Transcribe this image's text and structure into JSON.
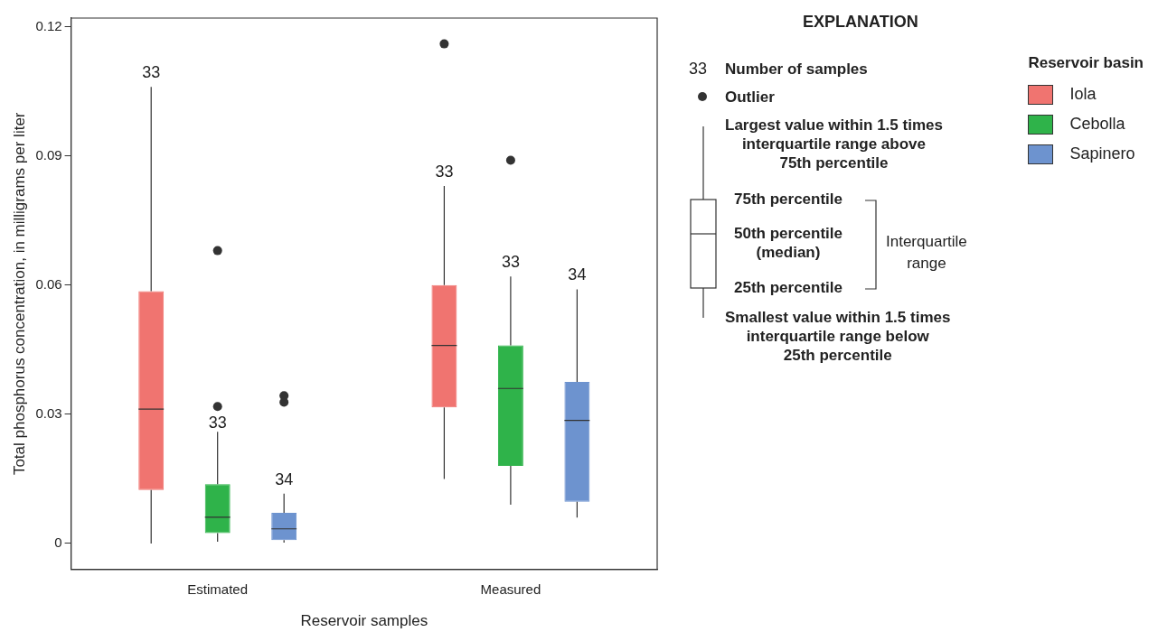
{
  "chart_data": {
    "type": "box",
    "xlabel": "Reservoir samples",
    "ylabel": "Total phosphorus concentration, in milligrams per liter",
    "categories": [
      "Estimated",
      "Measured"
    ],
    "ylim": [
      -0.006,
      0.122
    ],
    "yticks": [
      0,
      0.03,
      0.06,
      0.09,
      0.12
    ],
    "grid": false,
    "legend": "top right",
    "legend_title": "Reservoir basin",
    "series": [
      {
        "name": "Iola",
        "color": "#f07470",
        "boxes": [
          {
            "low": 0,
            "q1": 0.0124,
            "median": 0.0312,
            "q3": 0.0586,
            "high": 0.106
          },
          {
            "low": 0.015,
            "q1": 0.0316,
            "median": 0.046,
            "q3": 0.06,
            "high": 0.083,
            "outliers": [
              0.116
            ]
          }
        ]
      },
      {
        "name": "Cebolla",
        "color": "#2fb34a",
        "boxes": [
          {
            "low": 0.0004,
            "q1": 0.0024,
            "median": 0.0061,
            "q3": 0.0138,
            "high": 0.0284,
            "outliers": [
              0.0318,
              0.068
            ]
          },
          {
            "low": 0.009,
            "q1": 0.018,
            "median": 0.036,
            "q3": 0.046,
            "high": 0.062,
            "outliers": [
              0.089
            ]
          }
        ]
      },
      {
        "name": "Sapinero",
        "color": "#6d93cf",
        "boxes": [
          {
            "low": 0.0002,
            "q1": 0.0008,
            "median": 0.0034,
            "q3": 0.0071,
            "high": 0.0116,
            "outliers": [
              0.0328,
              0.0343
            ]
          },
          {
            "low": 0.006,
            "q1": 0.0097,
            "median": 0.0286,
            "q3": 0.0375,
            "high": 0.059
          }
        ]
      }
    ],
    "annotations": [
      "33",
      "33",
      "34",
      "33",
      "33",
      "34",
      "EXPLANATION",
      "33",
      "Number of samples",
      "Outlier",
      "Largest value within 1.5 times\ninterquartile range above\n75th percentile",
      "75th percentile",
      "50th percentile\n(median)",
      "25th percentile",
      "Interquartile\nrange",
      "Smallest value within 1.5 times\ninterquartile range below\n25th percentile"
    ]
  }
}
